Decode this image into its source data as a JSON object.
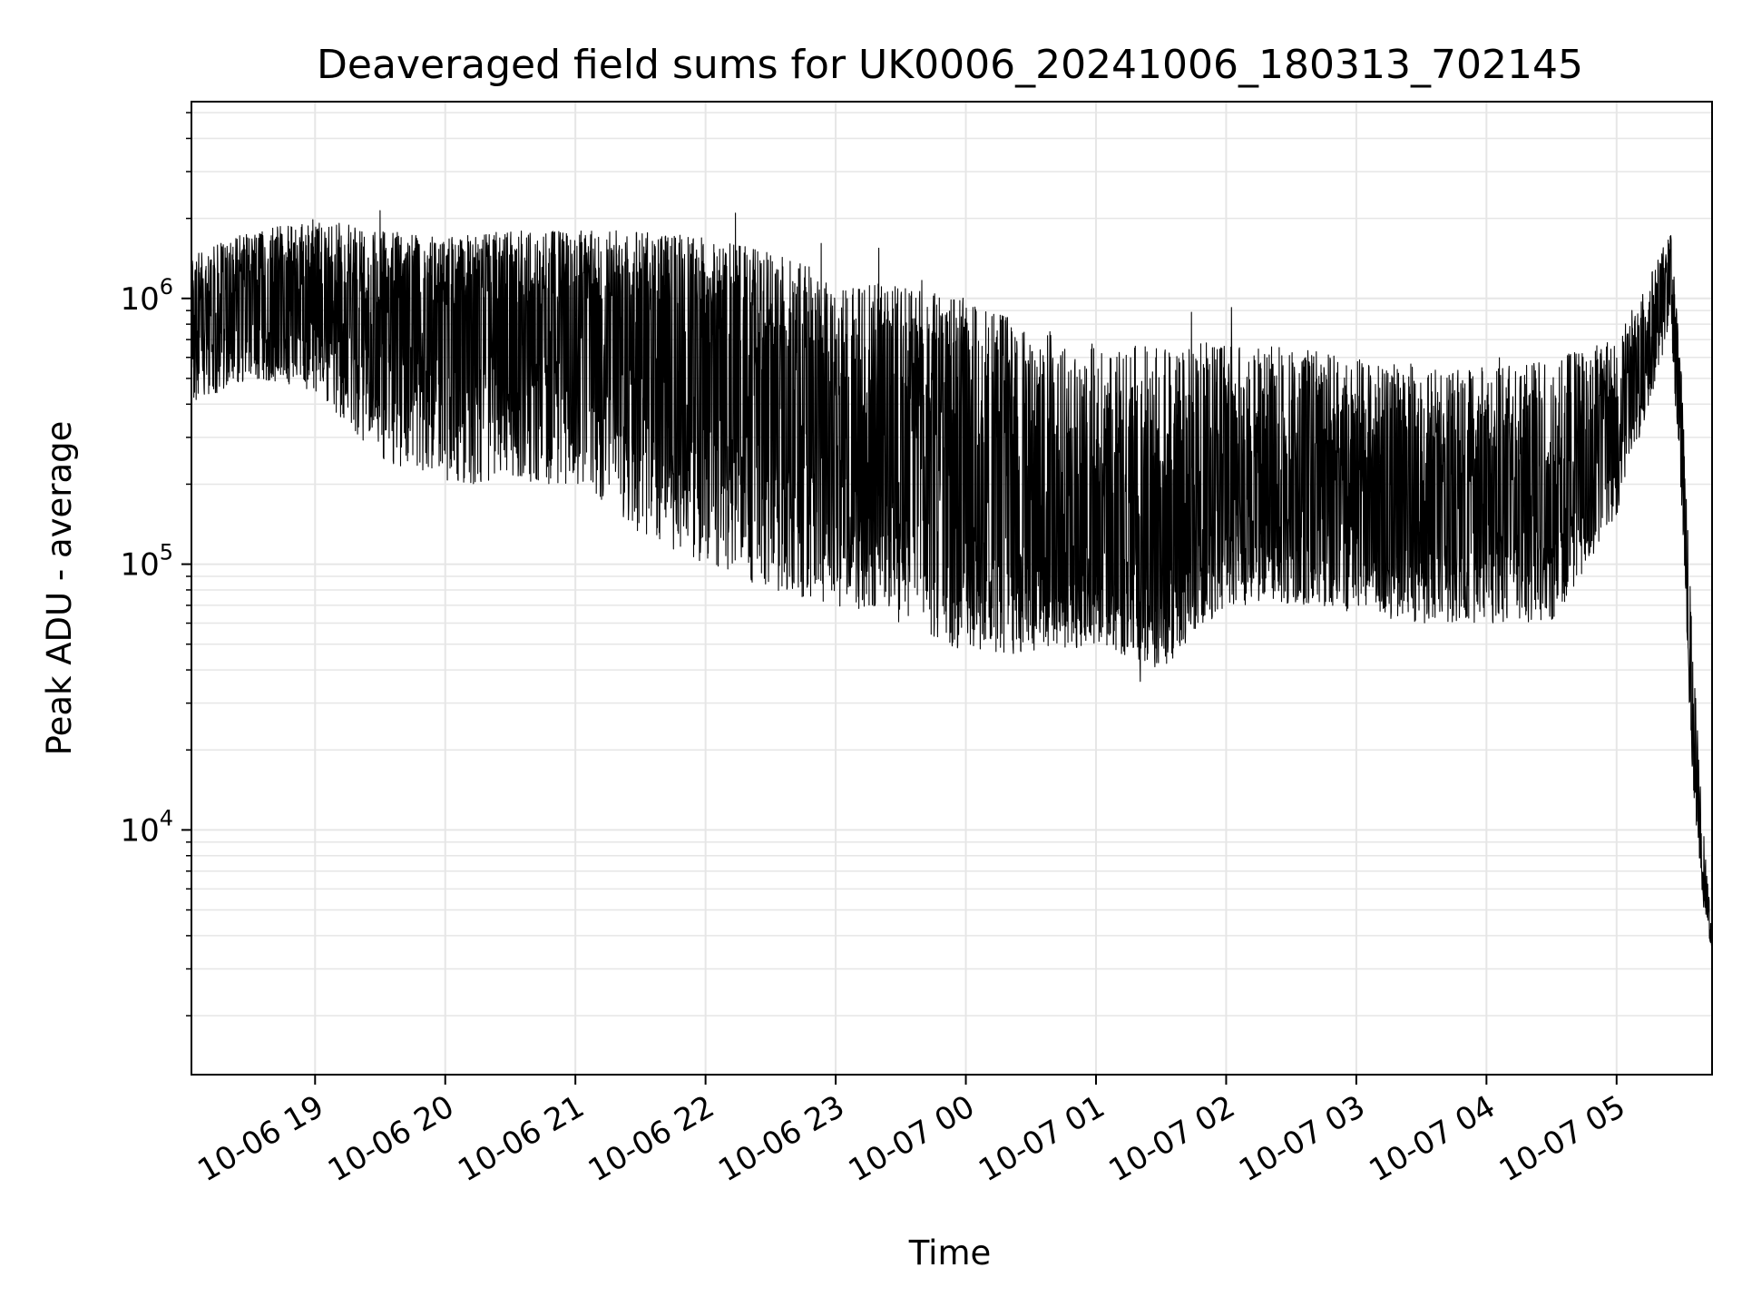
{
  "chart_data": {
    "type": "line",
    "title": "Deaveraged field sums for UK0006_20241006_180313_702145",
    "xlabel": "Time",
    "ylabel": "Peak ADU - average",
    "yscale": "log",
    "ylim": [
      1200,
      5500000
    ],
    "xlim": [
      "2024-10-06 18:03",
      "2024-10-07 05:44"
    ],
    "grid": true,
    "line_color": "#000000",
    "grid_color": "#e6e6e6",
    "x_ticks": [
      {
        "label": "10-06 19",
        "t": "2024-10-06 19:00"
      },
      {
        "label": "10-06 20",
        "t": "2024-10-06 20:00"
      },
      {
        "label": "10-06 21",
        "t": "2024-10-06 21:00"
      },
      {
        "label": "10-06 22",
        "t": "2024-10-06 22:00"
      },
      {
        "label": "10-06 23",
        "t": "2024-10-06 23:00"
      },
      {
        "label": "10-07 00",
        "t": "2024-10-07 00:00"
      },
      {
        "label": "10-07 01",
        "t": "2024-10-07 01:00"
      },
      {
        "label": "10-07 02",
        "t": "2024-10-07 02:00"
      },
      {
        "label": "10-07 03",
        "t": "2024-10-07 03:00"
      },
      {
        "label": "10-07 04",
        "t": "2024-10-07 04:00"
      },
      {
        "label": "10-07 05",
        "t": "2024-10-07 05:00"
      }
    ],
    "y_ticks": [
      {
        "base": "10",
        "exp": "4",
        "value": 10000
      },
      {
        "base": "10",
        "exp": "5",
        "value": 100000
      },
      {
        "base": "10",
        "exp": "6",
        "value": 1000000
      }
    ],
    "series": [
      {
        "envelope": {
          "t": [
            "2024-10-06 18:03",
            "2024-10-06 18:30",
            "2024-10-06 19:00",
            "2024-10-06 19:30",
            "2024-10-06 20:00",
            "2024-10-06 20:30",
            "2024-10-06 21:00",
            "2024-10-06 21:30",
            "2024-10-06 22:00",
            "2024-10-06 22:30",
            "2024-10-06 23:00",
            "2024-10-06 23:30",
            "2024-10-07 00:00",
            "2024-10-07 00:30",
            "2024-10-07 01:00",
            "2024-10-07 01:30",
            "2024-10-07 02:00",
            "2024-10-07 02:30",
            "2024-10-07 03:00",
            "2024-10-07 03:30",
            "2024-10-07 04:00",
            "2024-10-07 04:30",
            "2024-10-07 05:00",
            "2024-10-07 05:15",
            "2024-10-07 05:25",
            "2024-10-07 05:30",
            "2024-10-07 05:35",
            "2024-10-07 05:40",
            "2024-10-07 05:44"
          ],
          "top": [
            1500000,
            1800000,
            2000000,
            1800000,
            1700000,
            1800000,
            1800000,
            1800000,
            1700000,
            1500000,
            1200000,
            1100000,
            1000000,
            800000,
            700000,
            650000,
            700000,
            650000,
            600000,
            550000,
            550000,
            600000,
            700000,
            1200000,
            1800000,
            500000,
            50000,
            10000,
            4000
          ],
          "bottom": [
            400000,
            500000,
            450000,
            250000,
            200000,
            200000,
            200000,
            130000,
            100000,
            80000,
            70000,
            60000,
            45000,
            45000,
            50000,
            40000,
            70000,
            70000,
            65000,
            60000,
            60000,
            60000,
            150000,
            400000,
            800000,
            150000,
            15000,
            5000,
            3500
          ],
          "median": [
            900000,
            1000000,
            1000000,
            800000,
            900000,
            900000,
            900000,
            700000,
            600000,
            500000,
            300000,
            250000,
            200000,
            150000,
            120000,
            100000,
            200000,
            180000,
            150000,
            140000,
            150000,
            150000,
            350000,
            600000,
            1300000,
            300000,
            25000,
            7000,
            3600
          ]
        }
      }
    ]
  }
}
